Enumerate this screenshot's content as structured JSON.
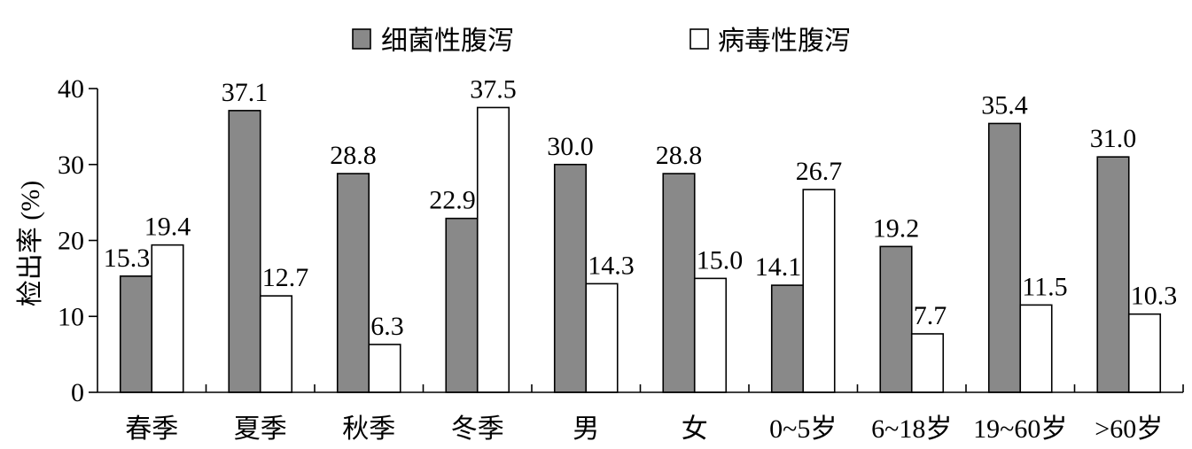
{
  "chart_data": {
    "type": "bar",
    "categories": [
      "春季",
      "夏季",
      "秋季",
      "冬季",
      "男",
      "女",
      "0~5岁",
      "6~18岁",
      "19~60岁",
      ">60岁"
    ],
    "series": [
      {
        "name": "细菌性腹泻",
        "color": "#898989",
        "values": [
          15.3,
          37.1,
          28.8,
          22.9,
          30.0,
          28.8,
          14.1,
          19.2,
          35.4,
          31.0
        ]
      },
      {
        "name": "病毒性腹泻",
        "color": "#ffffff",
        "values": [
          19.4,
          12.7,
          6.3,
          37.5,
          14.3,
          15.0,
          26.7,
          7.7,
          11.5,
          10.3
        ]
      }
    ],
    "ylabel": "检出率 (%)",
    "ylim": [
      0,
      40
    ],
    "yticks": [
      0,
      10,
      20,
      30,
      40
    ],
    "legend": "top",
    "grid": false,
    "data_labels": true
  }
}
